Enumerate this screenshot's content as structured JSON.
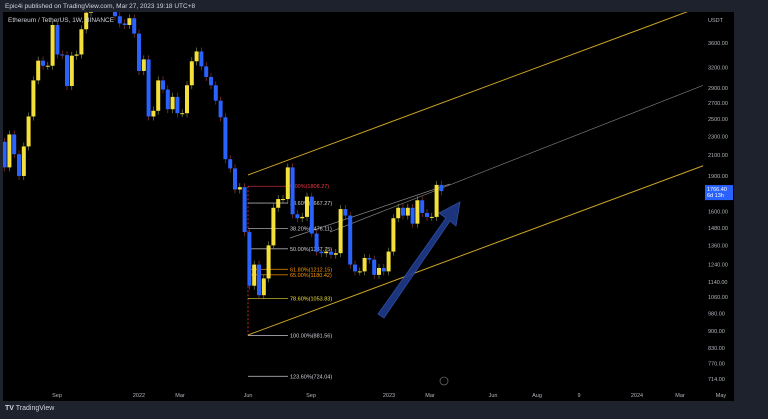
{
  "header": {
    "published": "Epic4i published on TradingView.com, Mar 27, 2023 19:18 UTC+8"
  },
  "symbol": "Ethereum / TetherUS, 1W, BINANCE",
  "brand": "TradingView",
  "colors": {
    "up": "#f5e03b",
    "down": "#2962ff",
    "channel": "#c9a227",
    "fib_red": "#f23645",
    "fib_orange": "#ff9800",
    "arrow": "#1e3a8a"
  },
  "chart_data": {
    "type": "candlestick",
    "scale": "log",
    "currency": "USDT",
    "ylim": [
      690,
      4000
    ],
    "y_ticks": [
      3600,
      3200,
      2900,
      2700,
      2500,
      2300,
      2100,
      1900,
      1600,
      1480,
      1360,
      1240,
      1140,
      1060,
      980,
      900,
      830,
      770,
      714
    ],
    "y_tick_labels": [
      "3600.00",
      "3200.00",
      "2900.00",
      "2700.00",
      "2500.00",
      "2300.00",
      "2100.00",
      "1900.00",
      "1600.00",
      "1480.00",
      "1360.00",
      "1240.00",
      "1140.00",
      "1060.00",
      "980.00",
      "900.00",
      "830.00",
      "770.00",
      "714.00"
    ],
    "x_ticks": [
      "Sep",
      "2022",
      "Mar",
      "Jun",
      "Sep",
      "2023",
      "Mar",
      "Jun",
      "Aug",
      "9",
      "2024",
      "Mar",
      "May"
    ],
    "last_price": {
      "value": "1766.40",
      "countdown": "6d 13h"
    },
    "start_week": "2021-06-07",
    "weekly_close": [
      2370,
      2240,
      1980,
      2320,
      2110,
      1900,
      2190,
      2530,
      3010,
      3310,
      3230,
      3230,
      3930,
      3410,
      3400,
      2930,
      3390,
      3410,
      3850,
      4170,
      4290,
      4610,
      4570,
      4320,
      4300,
      4100,
      3960,
      3930,
      4060,
      3770,
      3150,
      3330,
      2530,
      2600,
      3010,
      2880,
      2620,
      2780,
      2570,
      2570,
      2940,
      3300,
      3460,
      3220,
      3060,
      2940,
      2730,
      2520,
      2060,
      1970,
      1780,
      1800,
      1450,
      1120,
      1240,
      1070,
      1160,
      1360,
      1630,
      1700,
      1700,
      1980,
      1580,
      1550,
      1560,
      1720,
      1440,
      1320,
      1310,
      1320,
      1300,
      1310,
      1620,
      1570,
      1240,
      1200,
      1200,
      1280,
      1270,
      1180,
      1220,
      1200,
      1320,
      1550,
      1630,
      1570,
      1630,
      1510,
      1690,
      1590,
      1560,
      1560,
      1820,
      1766
    ],
    "fib_levels": [
      {
        "label": "0.00%(1808.27)",
        "price": 1808.27,
        "color": "#f23645"
      },
      {
        "label": "23.60%(1667.27)",
        "price": 1667.27,
        "color": "#d1d4dc"
      },
      {
        "label": "38.20%(1476.11)",
        "price": 1476.11,
        "color": "#d1d4dc"
      },
      {
        "label": "50.00%(1337.75)",
        "price": 1337.75,
        "color": "#d1d4dc"
      },
      {
        "label": "61.80%(1212.15)",
        "price": 1212.15,
        "color": "#ff9800"
      },
      {
        "label": "65.00%(1180.42)",
        "price": 1180.42,
        "color": "#ff9800"
      },
      {
        "label": "78.60%(1053.83)",
        "price": 1053.83,
        "color": "#f5e03b"
      },
      {
        "label": "100.00%(881.56)",
        "price": 881.56,
        "color": "#d1d4dc"
      },
      {
        "label": "123.60%(724.04)",
        "price": 724.04,
        "color": "#d1d4dc"
      }
    ]
  }
}
